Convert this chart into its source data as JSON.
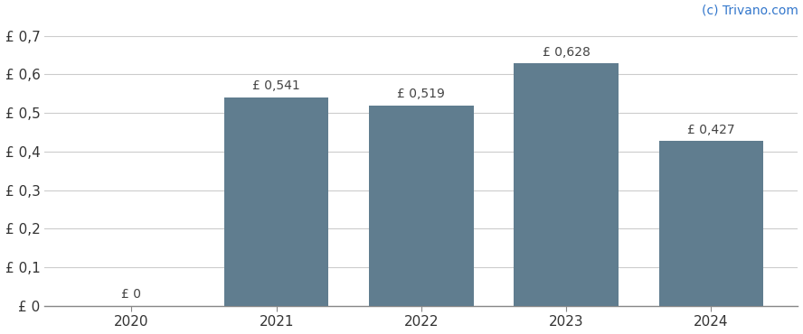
{
  "categories": [
    2020,
    2021,
    2022,
    2023,
    2024
  ],
  "values": [
    0,
    0.541,
    0.519,
    0.628,
    0.427
  ],
  "bar_color": "#607d8f",
  "bar_labels": [
    "£ 0",
    "£ 0,541",
    "£ 0,519",
    "£ 0,628",
    "£ 0,427"
  ],
  "ylabel_ticks": [
    0.0,
    0.1,
    0.2,
    0.3,
    0.4,
    0.5,
    0.6,
    0.7
  ],
  "ytick_labels": [
    "£ 0",
    "£ 0,1",
    "£ 0,2",
    "£ 0,3",
    "£ 0,4",
    "£ 0,5",
    "£ 0,6",
    "£ 0,7"
  ],
  "ylim": [
    0,
    0.72
  ],
  "background_color": "#ffffff",
  "watermark": "(c) Trivano.com",
  "watermark_color": "#3377cc",
  "grid_color": "#cccccc",
  "bar_label_color": "#444444",
  "bar_label_fontsize": 10,
  "tick_label_fontsize": 11,
  "xtick_label_fontsize": 11,
  "watermark_fontsize": 10
}
